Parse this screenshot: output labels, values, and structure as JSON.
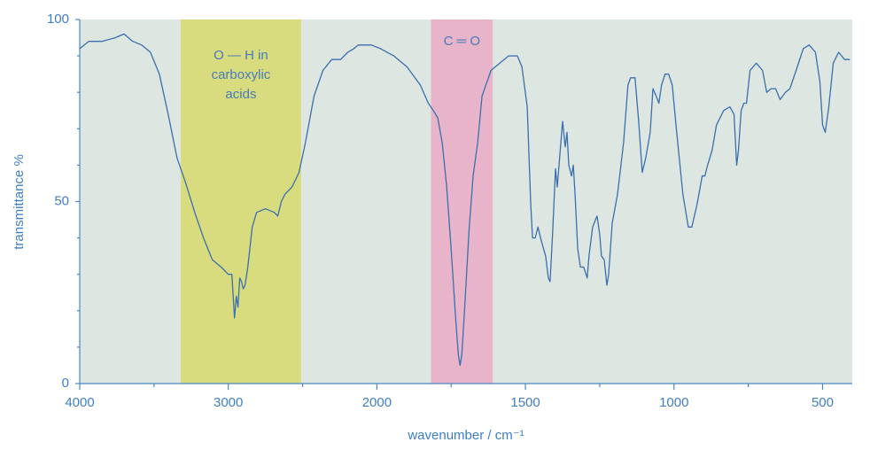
{
  "chart_data": {
    "type": "line",
    "x_label": "wavenumber / cm⁻¹",
    "y_label": "transmittance %",
    "xlim": [
      4000,
      400
    ],
    "xticks": [
      4000,
      3000,
      2000,
      1500,
      1000,
      500
    ],
    "x_minor_ticks": [
      3500,
      2500,
      1750,
      1250,
      750
    ],
    "ylim": [
      0,
      100
    ],
    "yticks": [
      0,
      50,
      100
    ],
    "y_minor_ticks": [
      10,
      20,
      30,
      40,
      60,
      70,
      80,
      90
    ],
    "plot_background": "#dde6e0",
    "color": "#3a6fb0",
    "bands": [
      {
        "label": [
          "O — H in",
          "carboxylic",
          "acids"
        ],
        "range": [
          3320,
          2510
        ],
        "color": "#d9dc7e"
      },
      {
        "label": [
          "C ═ O"
        ],
        "range": [
          1818,
          1610
        ],
        "color": "#e8b4c9"
      }
    ],
    "x": [
      4000,
      3940,
      3851,
      3762,
      3702,
      3643,
      3583,
      3524,
      3464,
      3405,
      3345,
      3286,
      3226,
      3167,
      3107,
      3048,
      3000,
      2976,
      2958,
      2946,
      2935,
      2923,
      2911,
      2899,
      2887,
      2869,
      2839,
      2810,
      2750,
      2690,
      2667,
      2643,
      2619,
      2571,
      2524,
      2482,
      2423,
      2363,
      2304,
      2244,
      2196,
      2155,
      2125,
      2095,
      2036,
      1988,
      1943,
      1899,
      1854,
      1827,
      1810,
      1795,
      1780,
      1765,
      1750,
      1735,
      1726,
      1720,
      1714,
      1705,
      1690,
      1676,
      1661,
      1646,
      1616,
      1586,
      1557,
      1542,
      1527,
      1512,
      1494,
      1482,
      1476,
      1467,
      1458,
      1446,
      1432,
      1423,
      1417,
      1408,
      1399,
      1393,
      1384,
      1375,
      1366,
      1360,
      1354,
      1345,
      1339,
      1333,
      1324,
      1315,
      1304,
      1292,
      1286,
      1274,
      1259,
      1250,
      1244,
      1235,
      1226,
      1220,
      1208,
      1190,
      1170,
      1155,
      1146,
      1131,
      1119,
      1107,
      1095,
      1080,
      1071,
      1060,
      1051,
      1042,
      1030,
      1018,
      1006,
      991,
      970,
      952,
      940,
      923,
      905,
      896,
      887,
      872,
      857,
      833,
      812,
      798,
      789,
      783,
      774,
      765,
      756,
      744,
      723,
      702,
      688,
      673,
      658,
      643,
      625,
      610,
      589,
      565,
      545,
      524,
      509,
      500,
      491,
      479,
      464,
      446,
      426,
      408
    ],
    "values": [
      92,
      94,
      94,
      95,
      96,
      94,
      93,
      91,
      85,
      74,
      62,
      55,
      47,
      40,
      34,
      32,
      30,
      30,
      18,
      24,
      21,
      29,
      28,
      26,
      27,
      32,
      43,
      47,
      48,
      47,
      46,
      50,
      52,
      54,
      58,
      66,
      79,
      86,
      89,
      89,
      91,
      92,
      93,
      93,
      93,
      92,
      90,
      87,
      82,
      77,
      75,
      73,
      66,
      54,
      37,
      18,
      8,
      5,
      8,
      20,
      42,
      57,
      66,
      79,
      86,
      88,
      90,
      90,
      90,
      87,
      76,
      49,
      40,
      40,
      43,
      39,
      35,
      29,
      28,
      42,
      59,
      54,
      63,
      72,
      65,
      69,
      60,
      57,
      60,
      52,
      37,
      32,
      32,
      29,
      35,
      43,
      46,
      41,
      35,
      34,
      27,
      30,
      44,
      52,
      66,
      82,
      84,
      84,
      72,
      58,
      62,
      69,
      81,
      79,
      77,
      82,
      85,
      85,
      82,
      69,
      52,
      43,
      43,
      49,
      57,
      57,
      60,
      64,
      71,
      75,
      76,
      74,
      60,
      64,
      75,
      77,
      77,
      86,
      88,
      86,
      80,
      81,
      81,
      78,
      80,
      81,
      86,
      92,
      93,
      91,
      83,
      71,
      69,
      76,
      88,
      91,
      89,
      89
    ]
  }
}
